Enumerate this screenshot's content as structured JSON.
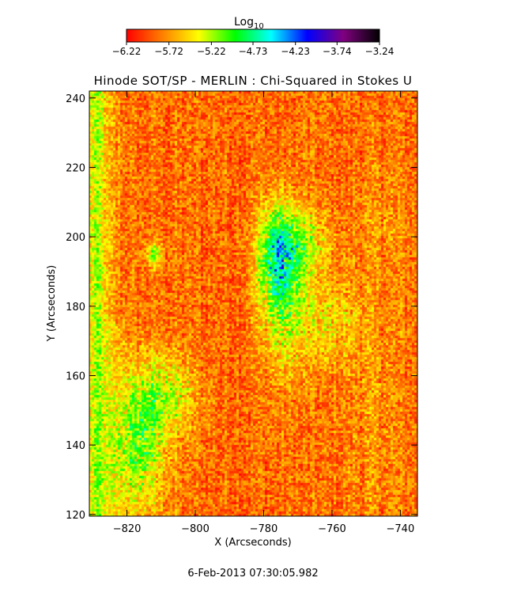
{
  "chart_data": {
    "type": "heatmap",
    "title": "Hinode SOT/SP - MERLIN : Chi-Squared in Stokes U",
    "xlabel": "X (Arcseconds)",
    "ylabel": "Y (Arcseconds)",
    "xlim": [
      -831,
      -735
    ],
    "ylim": [
      119.5,
      242
    ],
    "x_ticks": [
      -820,
      -800,
      -780,
      -760,
      -740
    ],
    "x_tick_labels": [
      "−820",
      "−800",
      "−780",
      "−760",
      "−740"
    ],
    "y_ticks": [
      120,
      140,
      160,
      180,
      200,
      220,
      240
    ],
    "y_tick_labels": [
      "120",
      "140",
      "160",
      "180",
      "200",
      "220",
      "240"
    ],
    "colorbar": {
      "label_base": "Log",
      "label_sub": "10",
      "range": [
        -6.22,
        -3.24
      ],
      "ticks": [
        -6.22,
        -5.72,
        -5.22,
        -4.73,
        -4.23,
        -3.74,
        -3.24
      ],
      "tick_labels": [
        "−6.22",
        "−5.72",
        "−5.22",
        "−4.73",
        "−4.23",
        "−3.74",
        "−3.24"
      ],
      "colors": [
        "#ff0000",
        "#ff8000",
        "#ffff00",
        "#00ff00",
        "#00ffff",
        "#0000ff",
        "#800080",
        "#000000"
      ]
    },
    "background_value": -5.85,
    "features": [
      {
        "region": "left-edge band",
        "x": -829,
        "y_range": [
          120,
          240
        ],
        "value": -5.15
      },
      {
        "region": "lower-left patches",
        "x_center": -816,
        "y_center": 138,
        "value": -4.9
      },
      {
        "region": "central plage",
        "x_center": -776,
        "y_center": 192,
        "value": -4.75
      },
      {
        "region": "small patch",
        "x_center": -812,
        "y_center": 195,
        "value": -5.0
      }
    ],
    "timestamp": "6-Feb-2013 07:30:05.982"
  }
}
